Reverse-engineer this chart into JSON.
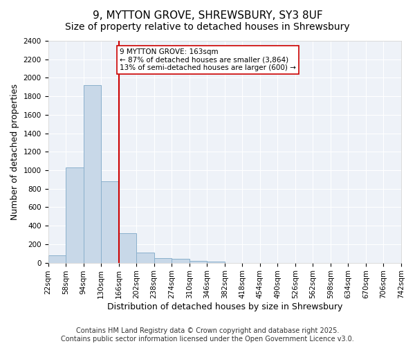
{
  "title_line1": "9, MYTTON GROVE, SHREWSBURY, SY3 8UF",
  "title_line2": "Size of property relative to detached houses in Shrewsbury",
  "xlabel": "Distribution of detached houses by size in Shrewsbury",
  "ylabel": "Number of detached properties",
  "bar_edges": [
    22,
    58,
    94,
    130,
    166,
    202,
    238,
    274,
    310,
    346,
    382,
    418,
    454,
    490,
    526,
    562,
    598,
    634,
    670,
    706,
    742
  ],
  "bar_heights": [
    80,
    1030,
    1920,
    880,
    320,
    110,
    50,
    40,
    20,
    10,
    0,
    0,
    0,
    0,
    0,
    0,
    0,
    0,
    0,
    0
  ],
  "bar_color": "#c8d8e8",
  "bar_edgecolor": "#8ab0cc",
  "vline_x": 166,
  "vline_color": "#cc0000",
  "annotation_text": "9 MYTTON GROVE: 163sqm\n← 87% of detached houses are smaller (3,864)\n13% of semi-detached houses are larger (600) →",
  "annotation_box_color": "#ffffff",
  "annotation_box_edgecolor": "#cc0000",
  "ylim": [
    0,
    2400
  ],
  "yticks": [
    0,
    200,
    400,
    600,
    800,
    1000,
    1200,
    1400,
    1600,
    1800,
    2000,
    2200,
    2400
  ],
  "tick_labels": [
    "22sqm",
    "58sqm",
    "94sqm",
    "130sqm",
    "166sqm",
    "202sqm",
    "238sqm",
    "274sqm",
    "310sqm",
    "346sqm",
    "382sqm",
    "418sqm",
    "454sqm",
    "490sqm",
    "526sqm",
    "562sqm",
    "598sqm",
    "634sqm",
    "670sqm",
    "706sqm",
    "742sqm"
  ],
  "background_color": "#eef2f8",
  "grid_color": "#ffffff",
  "footer_text": "Contains HM Land Registry data © Crown copyright and database right 2025.\nContains public sector information licensed under the Open Government Licence v3.0.",
  "title_fontsize": 11,
  "subtitle_fontsize": 10,
  "axis_label_fontsize": 9,
  "tick_fontsize": 7.5,
  "footer_fontsize": 7
}
